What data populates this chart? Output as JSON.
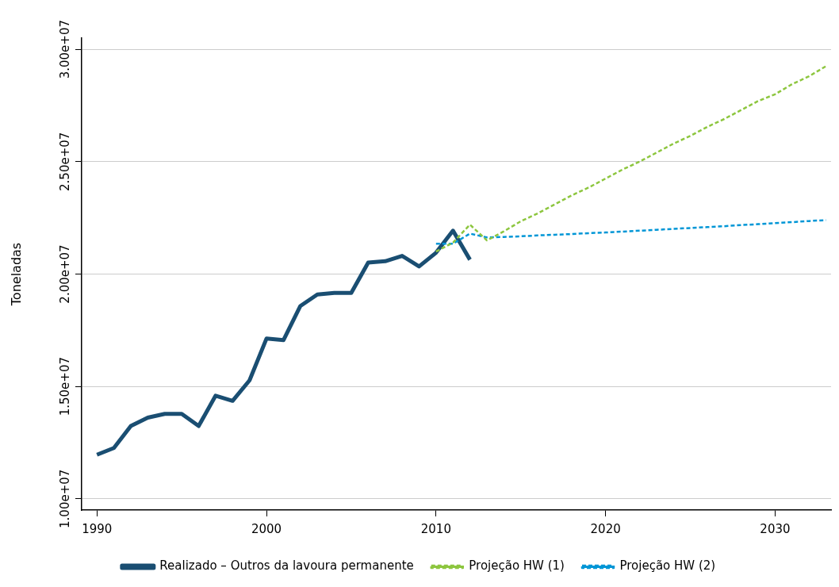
{
  "chart_data": {
    "type": "line",
    "ylabel": "Toneladas",
    "xlim": [
      1989.1,
      2033.3
    ],
    "xticks": [
      1990,
      2000,
      2010,
      2020,
      2030
    ],
    "ylim": [
      9500000,
      30500000
    ],
    "yticks": [
      {
        "value": 10000000,
        "label": "1.00e+07"
      },
      {
        "value": 15000000,
        "label": "1.50e+07"
      },
      {
        "value": 20000000,
        "label": "2.00e+07"
      },
      {
        "value": 25000000,
        "label": "2.50e+07"
      },
      {
        "value": 30000000,
        "label": "3.00e+07"
      }
    ],
    "grid": "y",
    "legend": "bottom",
    "marker": "none",
    "series": [
      {
        "name": "Realizado – Outros da lavoura permanente",
        "color": "#1a4e72",
        "line_style": "solid",
        "x": [
          1990,
          1991,
          1992,
          1993,
          1994,
          1995,
          1996,
          1997,
          1998,
          1999,
          2000,
          2001,
          2002,
          2003,
          2004,
          2005,
          2006,
          2007,
          2008,
          2009,
          2010,
          2011,
          2012
        ],
        "values": [
          11960000,
          12260000,
          13240000,
          13610000,
          13780000,
          13780000,
          13240000,
          14590000,
          14360000,
          15270000,
          17130000,
          17060000,
          18580000,
          19090000,
          19160000,
          19160000,
          20510000,
          20570000,
          20810000,
          20340000,
          20950000,
          21930000,
          20640000
        ]
      },
      {
        "name": "Projeção HW (1)",
        "color": "#8dc63f",
        "line_style": "dashed",
        "x": [
          2010,
          2011,
          2012,
          2013,
          2014,
          2015,
          2016,
          2017,
          2018,
          2019,
          2020,
          2021,
          2022,
          2023,
          2024,
          2025,
          2026,
          2027,
          2028,
          2029,
          2030,
          2031,
          2032,
          2033
        ],
        "values": [
          21000000,
          21400000,
          22200000,
          21500000,
          21900000,
          22350000,
          22700000,
          23100000,
          23500000,
          23850000,
          24250000,
          24650000,
          25000000,
          25400000,
          25800000,
          26150000,
          26550000,
          26900000,
          27300000,
          27700000,
          28000000,
          28450000,
          28800000,
          29250000
        ]
      },
      {
        "name": "Projeção HW (2)",
        "color": "#0096d6",
        "line_style": "dashed",
        "x": [
          2010,
          2011,
          2012,
          2013,
          2014,
          2015,
          2016,
          2017,
          2018,
          2019,
          2020,
          2021,
          2022,
          2023,
          2024,
          2025,
          2026,
          2027,
          2028,
          2029,
          2030,
          2031,
          2032,
          2033
        ],
        "values": [
          21350000,
          21350000,
          21800000,
          21630000,
          21650000,
          21680000,
          21720000,
          21750000,
          21780000,
          21820000,
          21850000,
          21890000,
          21930000,
          21970000,
          22010000,
          22050000,
          22090000,
          22130000,
          22180000,
          22220000,
          22270000,
          22310000,
          22360000,
          22400000
        ]
      }
    ]
  }
}
